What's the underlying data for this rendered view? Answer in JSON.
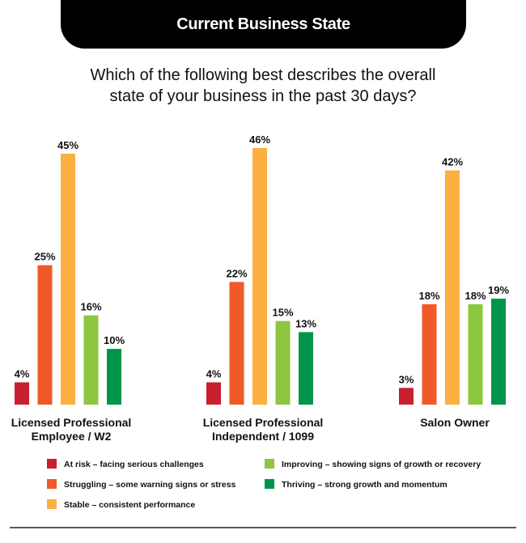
{
  "header": {
    "title": "Current Business State",
    "question_line1": "Which of the following best describes the overall",
    "question_line2": "state of your business in the past 30 days?"
  },
  "chart_data": {
    "type": "bar",
    "categories": [
      [
        "Licensed Professional",
        "Employee / W2"
      ],
      [
        "Licensed Professional",
        "Independent / 1099"
      ],
      [
        "Salon Owner"
      ]
    ],
    "series": [
      {
        "name": "At risk – facing serious challenges",
        "color": "#c8202f",
        "values": [
          4,
          4,
          3
        ],
        "labels": [
          "4%",
          "4%",
          "3%"
        ]
      },
      {
        "name": "Struggling – some warning signs or stress",
        "color": "#f05a28",
        "values": [
          25,
          22,
          18
        ],
        "labels": [
          "25%",
          "22%",
          "18%"
        ]
      },
      {
        "name": "Stable – consistent performance",
        "color": "#fbb040",
        "values": [
          45,
          46,
          42
        ],
        "labels": [
          "45%",
          "46%",
          "42%"
        ]
      },
      {
        "name": "Improving – showing signs of growth or recovery",
        "color": "#8dc63f",
        "values": [
          16,
          15,
          18
        ],
        "labels": [
          "16%",
          "15%",
          "18%"
        ]
      },
      {
        "name": "Thriving – strong growth and momentum",
        "color": "#00954a",
        "values": [
          10,
          13,
          19
        ],
        "labels": [
          "10%",
          "13%",
          "19%"
        ]
      }
    ],
    "ylim": [
      0,
      46
    ],
    "grid": false,
    "legend_position": "bottom"
  }
}
